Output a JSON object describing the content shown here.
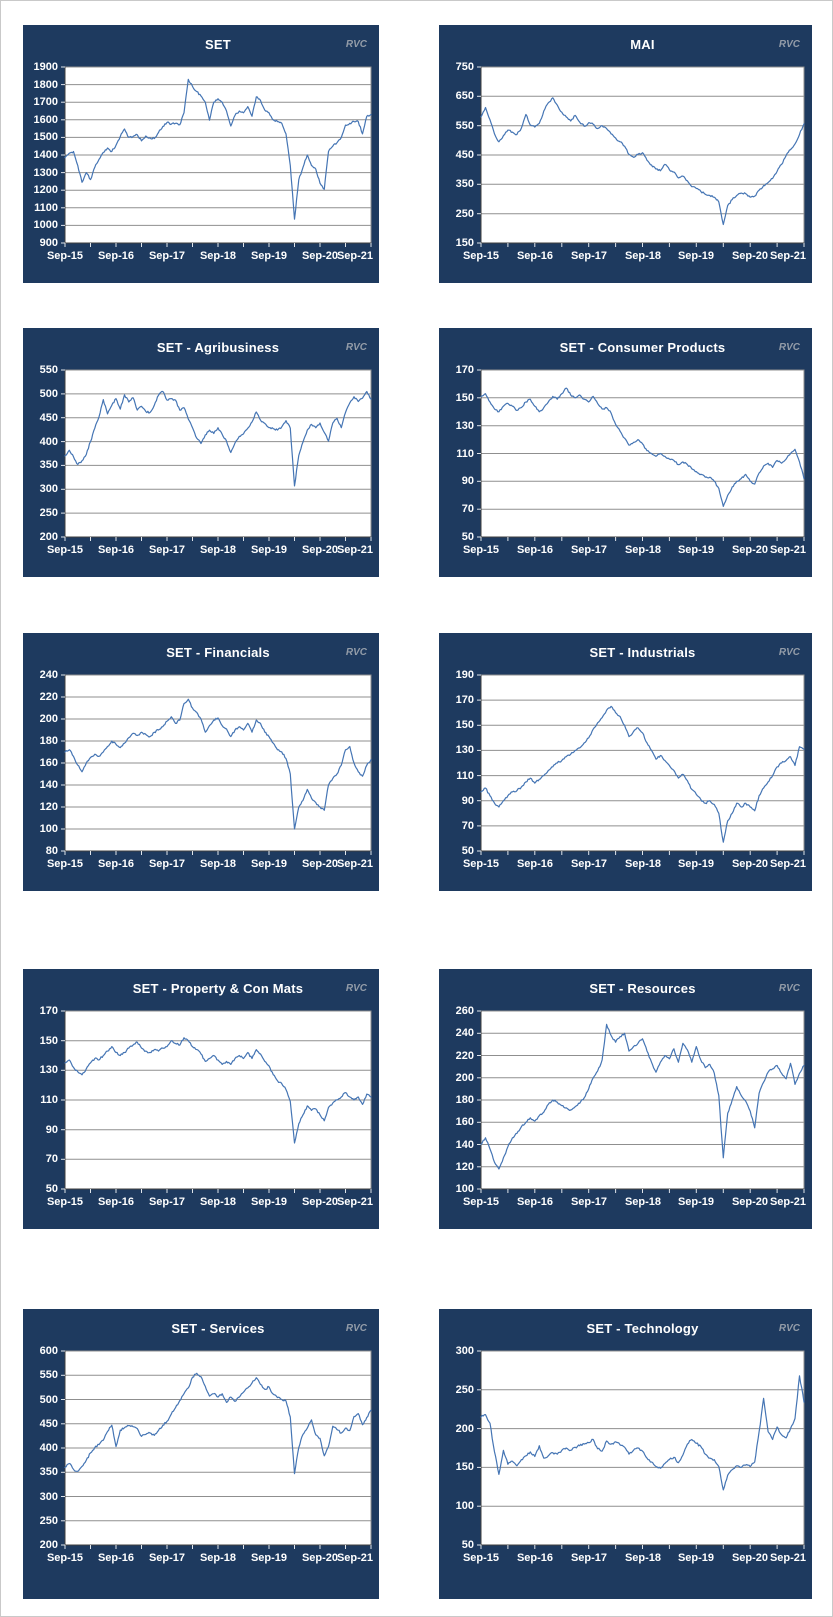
{
  "watermark": "RVC",
  "data_note": "Values are estimated monthly index levels read from the charts, Sep-2015 through Sep-2021 (73 points per series).",
  "style": {
    "panel_bg": "#1E3A5F",
    "plot_bg": "#FFFFFF",
    "line_color": "#4575B4",
    "grid_color": "#8F8F8F",
    "plot_border": "#8F8F8F",
    "axis_color": "#3F3F3F",
    "tick_color": "#DFE4EA",
    "label_color": "#FFFFFF",
    "watermark_color": "#939CA8"
  },
  "x_labels": [
    "Sep-15",
    "Sep-16",
    "Sep-17",
    "Sep-18",
    "Sep-19",
    "Sep-20",
    "Sep-21"
  ],
  "chart_data": [
    {
      "type": "line",
      "title": "SET",
      "xlabel": "",
      "ylabel": "",
      "x_tick_labels": [
        "Sep-15",
        "Sep-16",
        "Sep-17",
        "Sep-18",
        "Sep-19",
        "Sep-20",
        "Sep-21"
      ],
      "ylim": [
        900,
        1900
      ],
      "y_step": 100,
      "grid": true,
      "legend": "none",
      "y_ticks": [
        1900,
        1800,
        1700,
        1600,
        1500,
        1400,
        1300,
        1200,
        1100,
        1000,
        900
      ],
      "values": [
        1385,
        1410,
        1420,
        1340,
        1245,
        1300,
        1260,
        1330,
        1375,
        1415,
        1440,
        1420,
        1455,
        1505,
        1548,
        1500,
        1505,
        1515,
        1480,
        1508,
        1498,
        1493,
        1528,
        1562,
        1585,
        1575,
        1580,
        1572,
        1640,
        1830,
        1790,
        1760,
        1735,
        1700,
        1598,
        1700,
        1720,
        1700,
        1650,
        1565,
        1625,
        1650,
        1640,
        1675,
        1620,
        1730,
        1710,
        1655,
        1640,
        1600,
        1590,
        1580,
        1520,
        1340,
        1035,
        1260,
        1330,
        1400,
        1340,
        1320,
        1240,
        1205,
        1420,
        1450,
        1470,
        1500,
        1570,
        1580,
        1590,
        1590,
        1520,
        1620,
        1630
      ]
    },
    {
      "type": "line",
      "title": "MAI",
      "xlabel": "",
      "ylabel": "",
      "x_tick_labels": [
        "Sep-15",
        "Sep-16",
        "Sep-17",
        "Sep-18",
        "Sep-19",
        "Sep-20",
        "Sep-21"
      ],
      "ylim": [
        150,
        750
      ],
      "y_step": 100,
      "grid": true,
      "legend": "none",
      "y_ticks": [
        750,
        650,
        550,
        450,
        350,
        250,
        150
      ],
      "values": [
        580,
        612,
        570,
        522,
        495,
        516,
        535,
        528,
        520,
        542,
        588,
        552,
        545,
        558,
        600,
        628,
        645,
        620,
        596,
        580,
        566,
        585,
        562,
        548,
        560,
        555,
        540,
        550,
        540,
        522,
        508,
        495,
        480,
        452,
        442,
        452,
        458,
        432,
        416,
        402,
        396,
        418,
        400,
        392,
        372,
        378,
        362,
        342,
        336,
        326,
        316,
        312,
        306,
        290,
        213,
        278,
        298,
        312,
        320,
        318,
        306,
        310,
        330,
        346,
        356,
        370,
        394,
        418,
        448,
        468,
        488,
        520,
        556
      ]
    },
    {
      "type": "line",
      "title": "SET - Agribusiness",
      "xlabel": "",
      "ylabel": "",
      "x_tick_labels": [
        "Sep-15",
        "Sep-16",
        "Sep-17",
        "Sep-18",
        "Sep-19",
        "Sep-20",
        "Sep-21"
      ],
      "ylim": [
        200,
        550
      ],
      "y_step": 50,
      "grid": true,
      "legend": "none",
      "y_ticks": [
        550,
        500,
        450,
        400,
        350,
        300,
        250,
        200
      ],
      "values": [
        370,
        382,
        368,
        352,
        360,
        373,
        400,
        428,
        452,
        488,
        458,
        476,
        490,
        468,
        498,
        483,
        492,
        466,
        474,
        463,
        461,
        476,
        497,
        505,
        487,
        490,
        487,
        466,
        471,
        447,
        429,
        407,
        396,
        414,
        424,
        417,
        429,
        415,
        401,
        377,
        397,
        411,
        416,
        428,
        441,
        462,
        445,
        438,
        429,
        427,
        424,
        431,
        444,
        428,
        307,
        371,
        399,
        424,
        436,
        429,
        439,
        419,
        401,
        439,
        449,
        429,
        461,
        481,
        494,
        484,
        491,
        505,
        489
      ]
    },
    {
      "type": "line",
      "title": "SET - Consumer Products",
      "xlabel": "",
      "ylabel": "",
      "x_tick_labels": [
        "Sep-15",
        "Sep-16",
        "Sep-17",
        "Sep-18",
        "Sep-19",
        "Sep-20",
        "Sep-21"
      ],
      "ylim": [
        50,
        170
      ],
      "y_step": 20,
      "grid": true,
      "legend": "none",
      "y_ticks": [
        170,
        150,
        130,
        110,
        90,
        70,
        50
      ],
      "values": [
        151,
        153,
        147,
        142,
        140,
        144,
        146,
        144,
        141,
        143,
        147,
        149,
        144,
        140,
        143,
        147,
        151,
        149,
        153,
        157,
        152,
        150,
        152,
        149,
        147,
        151,
        146,
        142,
        143,
        139,
        131,
        126,
        121,
        116,
        118,
        120,
        117,
        112,
        110,
        108,
        110,
        108,
        106,
        105,
        102,
        104,
        102,
        99,
        97,
        95,
        93,
        93,
        90,
        85,
        72,
        80,
        86,
        90,
        92,
        95,
        90,
        88,
        96,
        101,
        103,
        100,
        105,
        103,
        106,
        110,
        113,
        104,
        92
      ]
    },
    {
      "type": "line",
      "title": "SET - Financials",
      "xlabel": "",
      "ylabel": "",
      "x_tick_labels": [
        "Sep-15",
        "Sep-16",
        "Sep-17",
        "Sep-18",
        "Sep-19",
        "Sep-20",
        "Sep-21"
      ],
      "ylim": [
        80,
        240
      ],
      "y_step": 20,
      "grid": true,
      "legend": "none",
      "y_ticks": [
        240,
        220,
        200,
        180,
        160,
        140,
        120,
        100,
        80
      ],
      "values": [
        170,
        172,
        166,
        158,
        152,
        160,
        165,
        168,
        166,
        170,
        175,
        180,
        177,
        174,
        178,
        183,
        187,
        185,
        188,
        186,
        184,
        188,
        190,
        193,
        198,
        202,
        196,
        199,
        214,
        218,
        210,
        206,
        200,
        188,
        194,
        199,
        201,
        194,
        191,
        184,
        190,
        193,
        190,
        196,
        188,
        199,
        196,
        188,
        184,
        178,
        172,
        170,
        164,
        150,
        100,
        120,
        126,
        136,
        128,
        124,
        120,
        117,
        140,
        146,
        150,
        158,
        172,
        175,
        160,
        152,
        148,
        158,
        163
      ]
    },
    {
      "type": "line",
      "title": "SET - Industrials",
      "xlabel": "",
      "ylabel": "",
      "x_tick_labels": [
        "Sep-15",
        "Sep-16",
        "Sep-17",
        "Sep-18",
        "Sep-19",
        "Sep-20",
        "Sep-21"
      ],
      "ylim": [
        50,
        190
      ],
      "y_step": 20,
      "grid": true,
      "legend": "none",
      "y_ticks": [
        190,
        170,
        150,
        130,
        110,
        90,
        70,
        50
      ],
      "values": [
        97,
        100,
        94,
        88,
        85,
        90,
        94,
        97,
        98,
        101,
        105,
        108,
        104,
        107,
        110,
        114,
        117,
        120,
        122,
        125,
        127,
        130,
        132,
        136,
        140,
        147,
        152,
        156,
        162,
        165,
        160,
        157,
        150,
        141,
        145,
        148,
        144,
        136,
        130,
        123,
        126,
        122,
        118,
        114,
        108,
        111,
        106,
        99,
        95,
        91,
        88,
        90,
        87,
        80,
        57,
        74,
        80,
        88,
        85,
        88,
        85,
        82,
        94,
        100,
        105,
        110,
        117,
        120,
        122,
        125,
        118,
        133,
        131
      ]
    },
    {
      "type": "line",
      "title": "SET - Property & Con Mats",
      "xlabel": "",
      "ylabel": "",
      "x_tick_labels": [
        "Sep-15",
        "Sep-16",
        "Sep-17",
        "Sep-18",
        "Sep-19",
        "Sep-20",
        "Sep-21"
      ],
      "ylim": [
        50,
        170
      ],
      "y_step": 20,
      "grid": true,
      "legend": "none",
      "y_ticks": [
        170,
        150,
        130,
        110,
        90,
        70,
        50
      ],
      "values": [
        135,
        137,
        132,
        129,
        127,
        131,
        135,
        138,
        137,
        140,
        143,
        146,
        142,
        140,
        142,
        145,
        147,
        149,
        145,
        143,
        142,
        144,
        143,
        145,
        146,
        150,
        148,
        147,
        152,
        150,
        146,
        144,
        141,
        136,
        138,
        140,
        137,
        134,
        136,
        134,
        138,
        140,
        138,
        142,
        138,
        144,
        141,
        136,
        133,
        127,
        123,
        121,
        117,
        109,
        81,
        94,
        100,
        106,
        103,
        104,
        100,
        96,
        105,
        108,
        110,
        112,
        115,
        112,
        110,
        112,
        107,
        114,
        112
      ]
    },
    {
      "type": "line",
      "title": "SET - Resources",
      "xlabel": "",
      "ylabel": "",
      "x_tick_labels": [
        "Sep-15",
        "Sep-16",
        "Sep-17",
        "Sep-18",
        "Sep-19",
        "Sep-20",
        "Sep-21"
      ],
      "ylim": [
        100,
        260
      ],
      "y_step": 20,
      "grid": true,
      "legend": "none",
      "y_ticks": [
        260,
        240,
        220,
        200,
        180,
        160,
        140,
        120,
        100
      ],
      "values": [
        140,
        146,
        136,
        124,
        118,
        128,
        138,
        146,
        150,
        156,
        160,
        164,
        161,
        166,
        169,
        176,
        180,
        178,
        175,
        173,
        171,
        174,
        177,
        182,
        190,
        200,
        206,
        216,
        248,
        238,
        232,
        237,
        240,
        224,
        228,
        231,
        235,
        224,
        214,
        205,
        214,
        220,
        217,
        226,
        214,
        231,
        225,
        214,
        228,
        216,
        209,
        212,
        204,
        184,
        128,
        168,
        180,
        192,
        184,
        179,
        170,
        155,
        186,
        196,
        205,
        208,
        211,
        204,
        199,
        213,
        194,
        204,
        211
      ]
    },
    {
      "type": "line",
      "title": "SET - Services",
      "xlabel": "",
      "ylabel": "",
      "x_tick_labels": [
        "Sep-15",
        "Sep-16",
        "Sep-17",
        "Sep-18",
        "Sep-19",
        "Sep-20",
        "Sep-21"
      ],
      "ylim": [
        200,
        600
      ],
      "y_step": 50,
      "grid": true,
      "legend": "none",
      "y_ticks": [
        600,
        550,
        500,
        450,
        400,
        350,
        300,
        250,
        200
      ],
      "values": [
        360,
        368,
        356,
        352,
        362,
        375,
        390,
        401,
        407,
        416,
        434,
        447,
        403,
        437,
        442,
        446,
        444,
        440,
        424,
        428,
        431,
        426,
        436,
        447,
        455,
        470,
        483,
        498,
        512,
        524,
        546,
        554,
        547,
        527,
        507,
        512,
        505,
        512,
        494,
        505,
        496,
        505,
        515,
        524,
        534,
        545,
        531,
        521,
        526,
        511,
        504,
        500,
        497,
        464,
        347,
        401,
        428,
        441,
        458,
        427,
        420,
        384,
        403,
        445,
        438,
        431,
        441,
        436,
        465,
        471,
        448,
        463,
        478
      ]
    },
    {
      "type": "line",
      "title": "SET - Technology",
      "xlabel": "",
      "ylabel": "",
      "x_tick_labels": [
        "Sep-15",
        "Sep-16",
        "Sep-17",
        "Sep-18",
        "Sep-19",
        "Sep-20",
        "Sep-21"
      ],
      "ylim": [
        50,
        300
      ],
      "y_step": 50,
      "grid": true,
      "legend": "none",
      "y_ticks": [
        300,
        250,
        200,
        150,
        100,
        50
      ],
      "values": [
        215,
        218,
        207,
        170,
        141,
        172,
        154,
        158,
        152,
        160,
        165,
        170,
        164,
        178,
        162,
        165,
        169,
        167,
        172,
        175,
        172,
        176,
        178,
        180,
        182,
        186,
        174,
        171,
        184,
        180,
        183,
        179,
        176,
        167,
        172,
        175,
        171,
        162,
        157,
        151,
        149,
        155,
        160,
        163,
        156,
        166,
        180,
        186,
        181,
        177,
        167,
        162,
        160,
        151,
        121,
        140,
        147,
        152,
        150,
        153,
        151,
        157,
        196,
        239,
        196,
        186,
        202,
        192,
        188,
        200,
        213,
        268,
        234
      ]
    }
  ]
}
